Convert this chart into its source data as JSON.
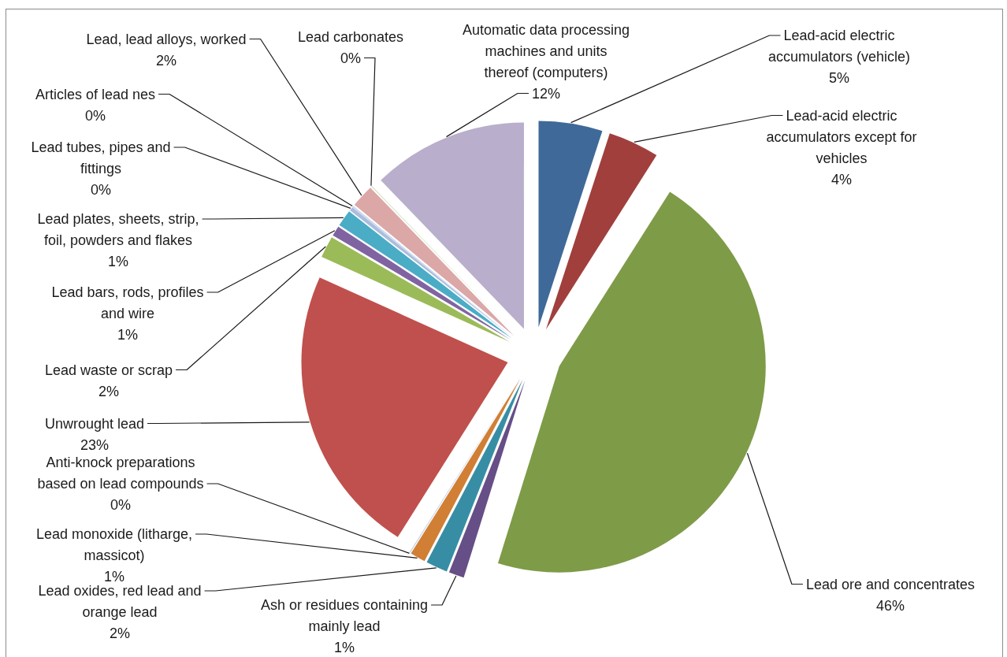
{
  "chart_data": {
    "type": "pie",
    "categories": [
      "Lead-acid electric accumulators (vehicle)",
      "Lead-acid electric accumulators except for vehicles",
      "Lead ore and concentrates",
      "Ash or residues containing mainly lead",
      "Lead oxides, red lead and orange lead",
      "Lead monoxide (litharge, massicot)",
      "Anti-knock preparations based on lead compounds",
      "Unwrought lead",
      "Lead waste or scrap",
      "Lead bars, rods, profiles and wire",
      "Lead plates, sheets, strip, foil, powders and flakes",
      "Lead tubes, pipes and fittings",
      "Articles of lead nes",
      "Lead, lead alloys, worked",
      "Lead carbonates",
      "Automatic data processing machines and units thereof (computers)"
    ],
    "values": [
      5.0,
      4.0,
      45.8,
      1.2,
      1.7,
      1.2,
      0.05,
      22.8,
      1.7,
      0.8,
      1.3,
      0.3,
      0.1,
      1.8,
      0.05,
      12.2
    ],
    "value_labels": [
      "5%",
      "4%",
      "46%",
      "1%",
      "2%",
      "1%",
      "0%",
      "23%",
      "2%",
      "1%",
      "1%",
      "0%",
      "0%",
      "2%",
      "0%",
      "12%"
    ],
    "colors": [
      "#3f6998",
      "#a03f3c",
      "#7e9b48",
      "#664e86",
      "#378ea4",
      "#d17f35",
      "#a9bfe0",
      "#c0504d",
      "#9bbb59",
      "#8064a2",
      "#4bacc6",
      "#aabdde",
      "#c6d2e8",
      "#dba8a7",
      "#c9d8a8",
      "#b9aecb"
    ]
  }
}
